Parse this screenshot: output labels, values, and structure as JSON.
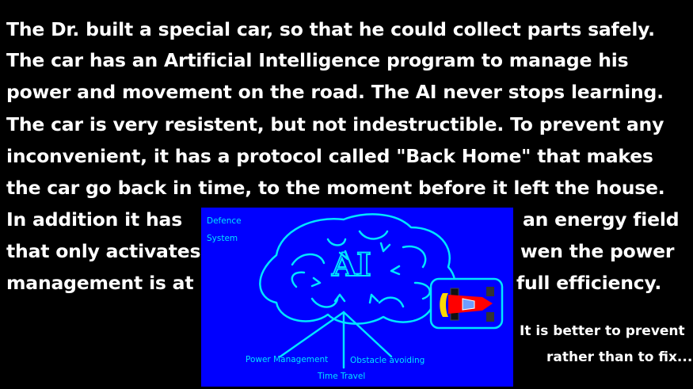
{
  "story": {
    "lines": [
      "The Dr. built a special car, so that he could collect parts safely.",
      "The car has an Artificial Intelligence program to manage his",
      "power and movement on the road. The AI never stops learning.",
      "The car is very resistent, but not indestructible. To prevent any",
      "inconvenient, it has a protocol called \"Back Home\" that makes",
      "the car go back in time, to the moment before it left the house."
    ],
    "left_fragments": [
      "In addition  it has",
      "that only activates",
      "management is at"
    ],
    "right_fragments": [
      "an energy field",
      "wen the power",
      "full efficiency."
    ]
  },
  "diagram": {
    "corner_label_1": "Defence",
    "corner_label_2": "System",
    "brain_label": "AI",
    "branch_1": "Power Management",
    "branch_2": "Obstacle avoiding",
    "branch_3": "Time Travel",
    "colors": {
      "background": "#0000ff",
      "line": "#00e5ff",
      "car_red": "#ff0000",
      "car_yellow": "#ffd700"
    }
  },
  "motto": {
    "line1": "It is better to prevent",
    "line2": "rather than to fix..."
  }
}
